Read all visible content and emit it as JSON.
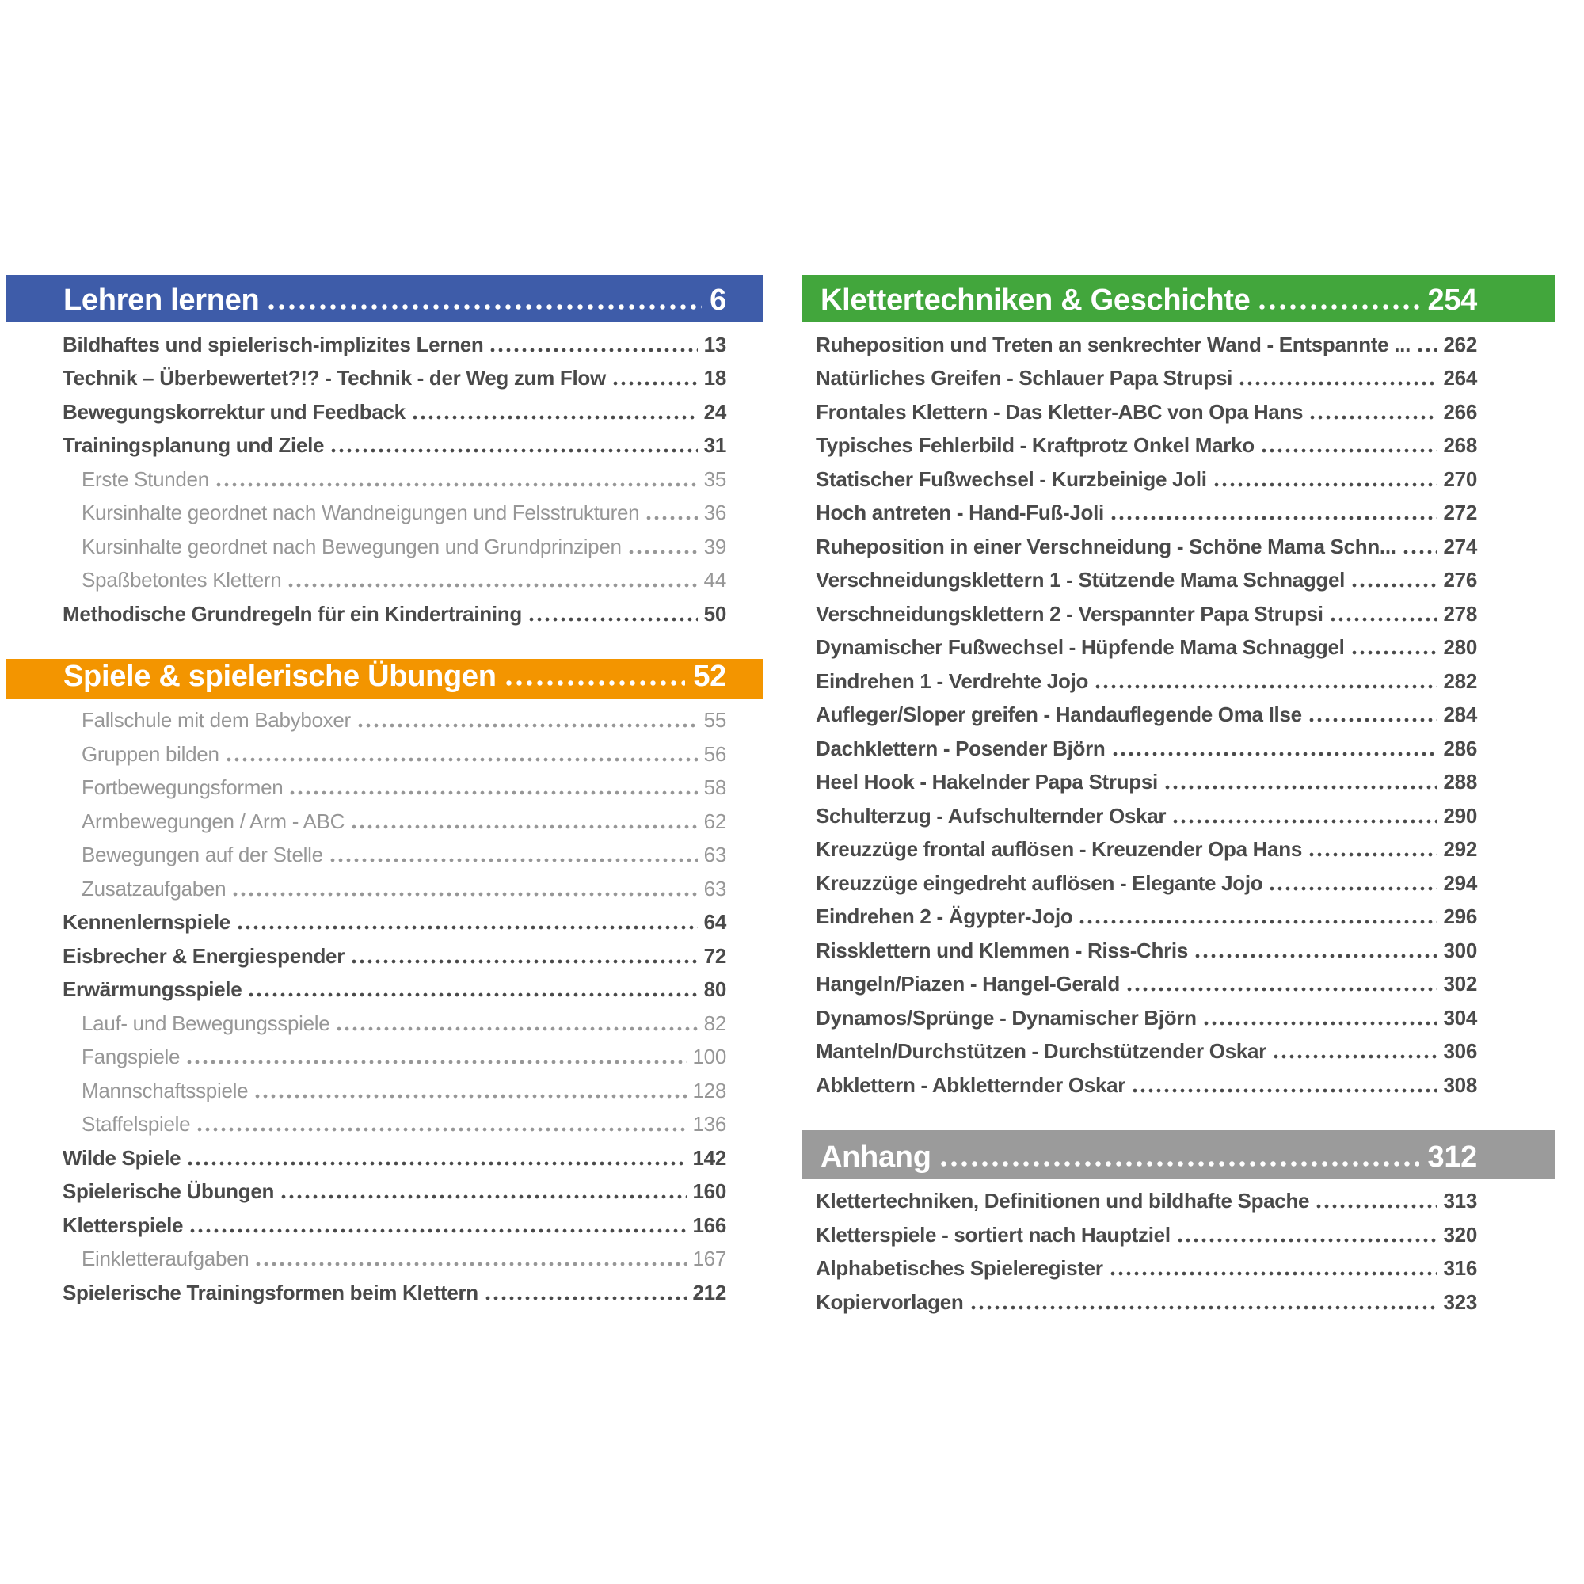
{
  "document": {
    "type": "book-table-of-contents",
    "language": "de"
  },
  "styles": {
    "header_text_color": "#ffffff",
    "entry_bold_color": "#4a4a4a",
    "entry_light_color": "#979797",
    "section_colors": {
      "blue": "#3e5ca9",
      "orange": "#f39500",
      "green": "#42a63c",
      "gray": "#9b9b9b"
    }
  },
  "columns": [
    {
      "name": "left",
      "sections": [
        {
          "header": {
            "label": "Lehren lernen",
            "page": "6",
            "bar_color": "#3e5ca9"
          },
          "entries": [
            {
              "label": "Bildhaftes und spielerisch-implizites Lernen",
              "page": "13",
              "weight": "bold"
            },
            {
              "label": "Technik – Überbewertet?!? - Technik - der Weg zum Flow",
              "page": "18",
              "weight": "bold"
            },
            {
              "label": "Bewegungskorrektur und Feedback",
              "page": "24",
              "weight": "bold"
            },
            {
              "label": "Trainingsplanung und Ziele",
              "page": "31",
              "weight": "bold"
            },
            {
              "label": "Erste Stunden",
              "page": "35",
              "weight": "light"
            },
            {
              "label": "Kursinhalte geordnet nach Wandneigungen und Felsstrukturen",
              "page": "36",
              "weight": "light"
            },
            {
              "label": "Kursinhalte geordnet nach Bewegungen und Grundprinzipen",
              "page": "39",
              "weight": "light"
            },
            {
              "label": "Spaßbetontes Klettern",
              "page": "44",
              "weight": "light"
            },
            {
              "label": "Methodische Grundregeln für ein Kindertraining",
              "page": "50",
              "weight": "bold"
            }
          ]
        },
        {
          "header": {
            "label": "Spiele & spielerische Übungen",
            "page": "52",
            "bar_color": "#f39500"
          },
          "entries": [
            {
              "label": "Fallschule mit dem Babyboxer",
              "page": "55",
              "weight": "light"
            },
            {
              "label": "Gruppen bilden",
              "page": "56",
              "weight": "light"
            },
            {
              "label": "Fortbewegungsformen",
              "page": "58",
              "weight": "light"
            },
            {
              "label": "Armbewegungen / Arm - ABC",
              "page": "62",
              "weight": "light"
            },
            {
              "label": "Bewegungen auf der Stelle",
              "page": "63",
              "weight": "light"
            },
            {
              "label": "Zusatzaufgaben",
              "page": "63",
              "weight": "light"
            },
            {
              "label": "Kennenlernspiele",
              "page": "64",
              "weight": "bold"
            },
            {
              "label": "Eisbrecher & Energiespender",
              "page": "72",
              "weight": "bold"
            },
            {
              "label": "Erwärmungsspiele",
              "page": "80",
              "weight": "bold"
            },
            {
              "label": "Lauf- und Bewegungsspiele",
              "page": "82",
              "weight": "light"
            },
            {
              "label": "Fangspiele",
              "page": "100",
              "weight": "light"
            },
            {
              "label": "Mannschaftsspiele",
              "page": "128",
              "weight": "light"
            },
            {
              "label": "Staffelspiele",
              "page": "136",
              "weight": "light"
            },
            {
              "label": "Wilde Spiele",
              "page": "142",
              "weight": "bold"
            },
            {
              "label": "Spielerische Übungen",
              "page": "160",
              "weight": "bold"
            },
            {
              "label": "Kletterspiele",
              "page": "166",
              "weight": "bold"
            },
            {
              "label": "Einkletteraufgaben",
              "page": "167",
              "weight": "light"
            },
            {
              "label": "Spielerische Trainingsformen beim Klettern",
              "page": "212",
              "weight": "bold"
            }
          ]
        }
      ]
    },
    {
      "name": "right",
      "sections": [
        {
          "header": {
            "label": "Klettertechniken & Geschichte",
            "page": "254",
            "bar_color": "#42a63c"
          },
          "entries": [
            {
              "label": "Ruheposition und Treten an senkrechter Wand - Entspannte ...",
              "page": "262",
              "weight": "bold"
            },
            {
              "label": "Natürliches Greifen - Schlauer Papa Strupsi",
              "page": "264",
              "weight": "bold"
            },
            {
              "label": "Frontales Klettern - Das Kletter-ABC von Opa Hans",
              "page": "266",
              "weight": "bold"
            },
            {
              "label": "Typisches Fehlerbild - Kraftprotz Onkel Marko",
              "page": "268",
              "weight": "bold"
            },
            {
              "label": "Statischer Fußwechsel - Kurzbeinige Joli",
              "page": "270",
              "weight": "bold"
            },
            {
              "label": "Hoch antreten - Hand-Fuß-Joli",
              "page": "272",
              "weight": "bold"
            },
            {
              "label": "Ruheposition in einer Verschneidung - Schöne Mama Schn...",
              "page": "274",
              "weight": "bold"
            },
            {
              "label": "Verschneidungsklettern 1 - Stützende Mama Schnaggel",
              "page": "276",
              "weight": "bold"
            },
            {
              "label": "Verschneidungsklettern 2 - Verspannter Papa Strupsi",
              "page": "278",
              "weight": "bold"
            },
            {
              "label": "Dynamischer Fußwechsel - Hüpfende Mama Schnaggel",
              "page": "280",
              "weight": "bold"
            },
            {
              "label": "Eindrehen 1 - Verdrehte Jojo",
              "page": "282",
              "weight": "bold"
            },
            {
              "label": "Aufleger/Sloper greifen - Handauflegende Oma Ilse",
              "page": "284",
              "weight": "bold"
            },
            {
              "label": "Dachklettern - Posender Björn",
              "page": "286",
              "weight": "bold"
            },
            {
              "label": "Heel Hook - Hakelnder Papa Strupsi",
              "page": "288",
              "weight": "bold"
            },
            {
              "label": "Schulterzug - Aufschulternder Oskar",
              "page": "290",
              "weight": "bold"
            },
            {
              "label": "Kreuzzüge frontal auflösen - Kreuzender Opa Hans",
              "page": "292",
              "weight": "bold"
            },
            {
              "label": "Kreuzzüge eingedreht auflösen - Elegante Jojo",
              "page": "294",
              "weight": "bold"
            },
            {
              "label": "Eindrehen 2 - Ägypter-Jojo",
              "page": "296",
              "weight": "bold"
            },
            {
              "label": "Rissklettern und Klemmen - Riss-Chris",
              "page": "300",
              "weight": "bold"
            },
            {
              "label": "Hangeln/Piazen - Hangel-Gerald",
              "page": "302",
              "weight": "bold"
            },
            {
              "label": "Dynamos/Sprünge - Dynamischer Björn",
              "page": "304",
              "weight": "bold"
            },
            {
              "label": "Manteln/Durchstützen - Durchstützender Oskar",
              "page": "306",
              "weight": "bold"
            },
            {
              "label": "Abklettern - Abkletternder Oskar",
              "page": "308",
              "weight": "bold"
            }
          ]
        },
        {
          "header": {
            "label": "Anhang",
            "page": "312",
            "bar_color": "#9b9b9b"
          },
          "entries": [
            {
              "label": "Klettertechniken, Definitionen und bildhafte Spache",
              "page": "313",
              "weight": "bold"
            },
            {
              "label": "Kletterspiele - sortiert nach Hauptziel",
              "page": "320",
              "weight": "bold"
            },
            {
              "label": "Alphabetisches Spieleregister",
              "page": "316",
              "weight": "bold"
            },
            {
              "label": "Kopiervorlagen",
              "page": "323",
              "weight": "bold"
            }
          ]
        }
      ]
    }
  ]
}
